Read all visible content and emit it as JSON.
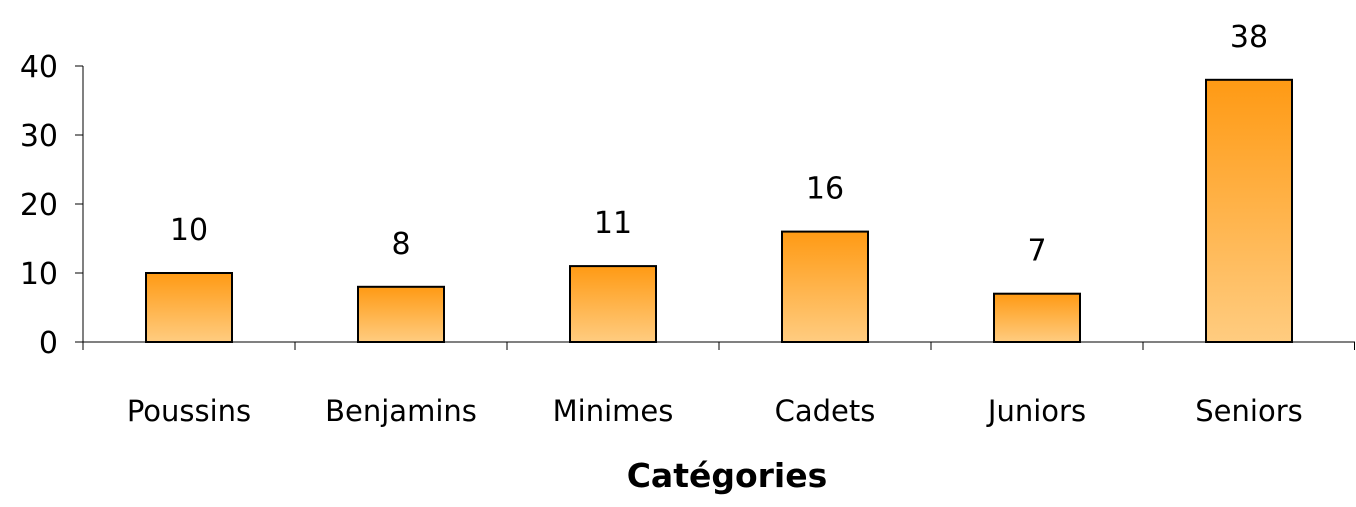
{
  "chart_data": {
    "type": "bar",
    "categories": [
      "Poussins",
      "Benjamins",
      "Minimes",
      "Cadets",
      "Juniors",
      "Seniors"
    ],
    "values": [
      10,
      8,
      11,
      16,
      7,
      38
    ],
    "title": "",
    "xlabel": "Catégories",
    "ylabel": "",
    "ylim": [
      0,
      40
    ],
    "yticks": [
      0,
      10,
      20,
      30,
      40
    ],
    "data_labels": [
      "10",
      "8",
      "11",
      "16",
      "7",
      "38"
    ],
    "grid": false,
    "legend": "none",
    "colors": {
      "bar_top": "#ff9a14",
      "bar_bottom": "#ffcc80",
      "bar_outline": "#000000",
      "axis": "#000000",
      "background": "#ffffff"
    }
  }
}
